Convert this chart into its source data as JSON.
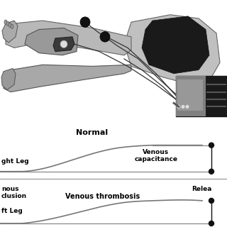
{
  "figure_bg": "#ffffff",
  "body_illustration": {
    "bg_color": "#ffffff",
    "body_color": "#c8c8c8",
    "dark_body": "#888888",
    "outline_color": "#555555",
    "shorts_color": "#222222",
    "cuff_color": "#444444",
    "device_dark": "#333333",
    "device_mid": "#666666",
    "device_light": "#aaaaaa",
    "wire_color": "#333333",
    "dot_color": "#111111"
  },
  "waveform": {
    "separator_color": "#888888",
    "line_color": "#888888",
    "curve_color": "#777777",
    "dot_color": "#111111",
    "text_color": "#000000",
    "normal_label": "Normal",
    "right_leg_label": "ght Leg",
    "venous_cap_label": "Venous\ncapacitance",
    "venous_occlusion_top": "nous",
    "venous_occlusion_bot": "clusion",
    "venous_thrombosis_label": "Venous thrombosis",
    "release_label": "Relea",
    "left_leg_label": "ft Leg"
  }
}
